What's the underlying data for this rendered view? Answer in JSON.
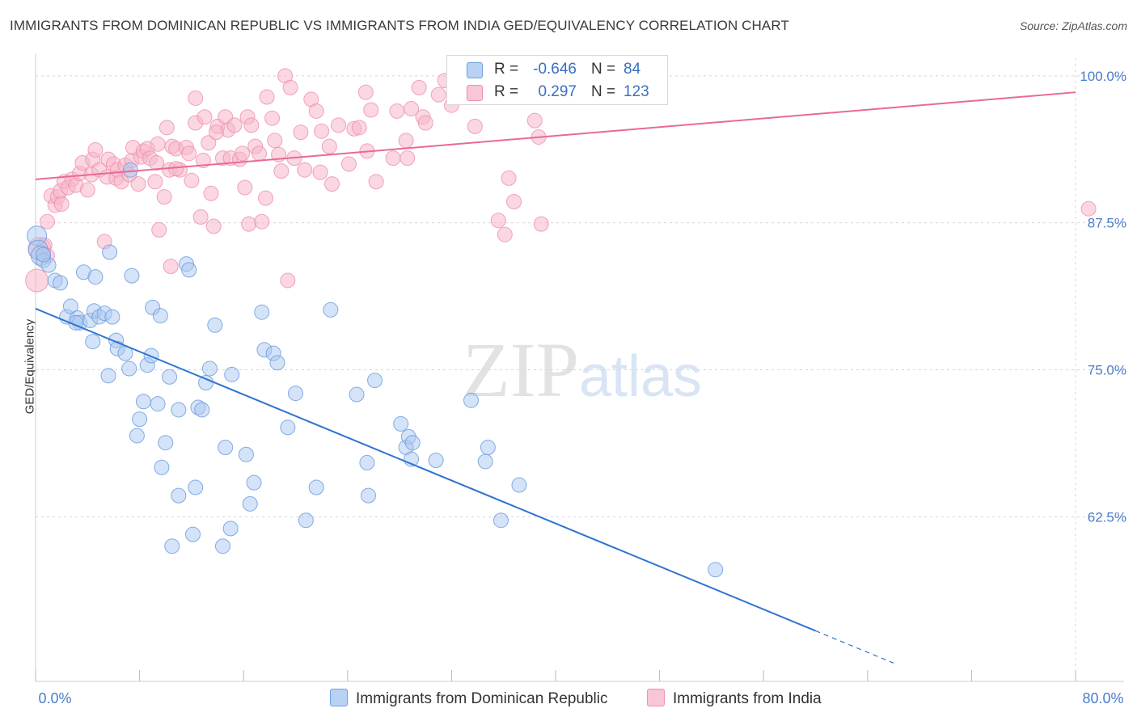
{
  "title": "IMMIGRANTS FROM DOMINICAN REPUBLIC VS IMMIGRANTS FROM INDIA GED/EQUIVALENCY CORRELATION CHART",
  "source": "Source: ZipAtlas.com",
  "watermark": "ZIPatlas",
  "colors": {
    "blue_fill": "#a9c7f0",
    "blue_stroke": "#6f9ee0",
    "blue_line": "#2f74d0",
    "pink_fill": "#f5b6c9",
    "pink_stroke": "#ee8fae",
    "pink_line": "#e86a94",
    "tick_label": "#4a7cc9"
  },
  "legend": {
    "series1": {
      "r_label": "R =",
      "r_value": "-0.646",
      "n_label": "N =",
      "n_value": "84",
      "name": "Immigrants from Dominican Republic"
    },
    "series2": {
      "r_label": "R =",
      "r_value": "0.297",
      "n_label": "N =",
      "n_value": "123",
      "name": "Immigrants from India"
    }
  },
  "chart_data": {
    "type": "scatter",
    "title": "IMMIGRANTS FROM DOMINICAN REPUBLIC VS IMMIGRANTS FROM INDIA GED/EQUIVALENCY CORRELATION CHART",
    "xlabel": "",
    "ylabel": "GED/Equivalency",
    "xlim": [
      0,
      80
    ],
    "ylim": [
      48.5,
      101.5
    ],
    "x_tick_labels": [
      "0.0%",
      "80.0%"
    ],
    "y_ticks": [
      62.5,
      75.0,
      87.5,
      100.0
    ],
    "y_tick_labels": [
      "62.5%",
      "75.0%",
      "87.5%",
      "100.0%"
    ],
    "grid": true,
    "legend_position": "top-center",
    "series": [
      {
        "name": "Immigrants from Dominican Republic",
        "color": "#6f9ee0",
        "trend": {
          "x0": 0.0,
          "y0": 80.2,
          "x1": 60.0,
          "y1": 52.8,
          "dashed_to_x": 66.0
        },
        "points": [
          [
            0.1,
            86.4
          ],
          [
            0.2,
            85.2
          ],
          [
            0.4,
            84.7
          ],
          [
            0.6,
            84.3
          ],
          [
            1.0,
            83.9
          ],
          [
            1.5,
            82.6
          ],
          [
            1.9,
            82.4
          ],
          [
            2.4,
            79.5
          ],
          [
            2.7,
            80.4
          ],
          [
            3.2,
            79.4
          ],
          [
            3.4,
            79.0
          ],
          [
            3.1,
            79.0
          ],
          [
            3.7,
            83.3
          ],
          [
            4.2,
            79.2
          ],
          [
            4.4,
            77.4
          ],
          [
            4.6,
            82.9
          ],
          [
            4.5,
            80.0
          ],
          [
            4.9,
            79.5
          ],
          [
            5.3,
            79.8
          ],
          [
            5.6,
            74.5
          ],
          [
            5.9,
            79.5
          ],
          [
            6.2,
            77.5
          ],
          [
            6.3,
            76.8
          ],
          [
            6.9,
            76.4
          ],
          [
            7.2,
            75.1
          ],
          [
            7.4,
            83.0
          ],
          [
            5.7,
            85.0
          ],
          [
            7.3,
            92.0
          ],
          [
            7.8,
            69.4
          ],
          [
            8.0,
            70.8
          ],
          [
            8.3,
            72.3
          ],
          [
            8.6,
            75.4
          ],
          [
            8.9,
            76.2
          ],
          [
            9.0,
            80.3
          ],
          [
            9.4,
            72.1
          ],
          [
            9.6,
            79.6
          ],
          [
            9.7,
            66.7
          ],
          [
            10.0,
            68.8
          ],
          [
            10.3,
            74.4
          ],
          [
            10.5,
            60.0
          ],
          [
            11.0,
            71.6
          ],
          [
            11.0,
            64.3
          ],
          [
            11.6,
            84.0
          ],
          [
            11.8,
            83.5
          ],
          [
            12.1,
            61.0
          ],
          [
            12.3,
            65.0
          ],
          [
            12.5,
            71.8
          ],
          [
            12.8,
            71.6
          ],
          [
            13.1,
            73.9
          ],
          [
            13.4,
            75.1
          ],
          [
            13.8,
            78.8
          ],
          [
            14.4,
            60.0
          ],
          [
            14.6,
            68.4
          ],
          [
            15.1,
            74.6
          ],
          [
            15.0,
            61.5
          ],
          [
            16.2,
            67.8
          ],
          [
            16.5,
            63.6
          ],
          [
            16.8,
            65.4
          ],
          [
            17.4,
            79.9
          ],
          [
            17.6,
            76.7
          ],
          [
            18.3,
            76.4
          ],
          [
            18.6,
            75.6
          ],
          [
            19.4,
            70.1
          ],
          [
            20.0,
            73.0
          ],
          [
            20.8,
            62.2
          ],
          [
            21.6,
            65.0
          ],
          [
            22.7,
            80.1
          ],
          [
            24.7,
            72.9
          ],
          [
            25.5,
            67.1
          ],
          [
            25.6,
            64.3
          ],
          [
            26.1,
            74.1
          ],
          [
            28.1,
            70.4
          ],
          [
            28.5,
            68.4
          ],
          [
            28.7,
            69.3
          ],
          [
            29.0,
            68.8
          ],
          [
            28.9,
            67.4
          ],
          [
            30.8,
            67.3
          ],
          [
            33.5,
            72.4
          ],
          [
            34.6,
            67.2
          ],
          [
            34.8,
            68.4
          ],
          [
            35.8,
            62.2
          ],
          [
            37.2,
            65.2
          ],
          [
            52.3,
            58.0
          ],
          [
            0.6,
            84.8
          ]
        ]
      },
      {
        "name": "Immigrants from India",
        "color": "#ee8fae",
        "trend": {
          "x0": 0.0,
          "y0": 91.2,
          "x1": 80.0,
          "y1": 98.6
        },
        "points": [
          [
            0.1,
            82.6
          ],
          [
            0.3,
            85.3
          ],
          [
            0.7,
            85.6
          ],
          [
            0.9,
            84.7
          ],
          [
            0.9,
            87.6
          ],
          [
            1.2,
            89.8
          ],
          [
            1.5,
            89.0
          ],
          [
            1.7,
            89.7
          ],
          [
            1.9,
            90.2
          ],
          [
            2.0,
            89.1
          ],
          [
            2.2,
            91.0
          ],
          [
            2.5,
            90.5
          ],
          [
            2.8,
            91.2
          ],
          [
            3.1,
            90.7
          ],
          [
            3.4,
            91.7
          ],
          [
            3.6,
            92.6
          ],
          [
            4.0,
            90.3
          ],
          [
            4.3,
            91.6
          ],
          [
            4.4,
            92.9
          ],
          [
            4.6,
            93.7
          ],
          [
            4.9,
            92.0
          ],
          [
            5.3,
            85.9
          ],
          [
            5.5,
            91.4
          ],
          [
            5.6,
            92.9
          ],
          [
            6.0,
            92.5
          ],
          [
            6.2,
            91.3
          ],
          [
            6.3,
            92.0
          ],
          [
            6.6,
            91.0
          ],
          [
            6.9,
            92.4
          ],
          [
            7.2,
            91.6
          ],
          [
            7.4,
            92.8
          ],
          [
            7.5,
            93.9
          ],
          [
            7.9,
            90.8
          ],
          [
            8.1,
            93.1
          ],
          [
            8.3,
            93.6
          ],
          [
            8.6,
            93.8
          ],
          [
            8.8,
            93.0
          ],
          [
            9.2,
            91.0
          ],
          [
            9.4,
            94.2
          ],
          [
            9.5,
            86.9
          ],
          [
            9.9,
            89.7
          ],
          [
            10.1,
            95.6
          ],
          [
            10.3,
            92.0
          ],
          [
            10.4,
            83.8
          ],
          [
            10.5,
            94.0
          ],
          [
            10.8,
            93.8
          ],
          [
            11.1,
            92.0
          ],
          [
            11.6,
            93.9
          ],
          [
            11.8,
            93.4
          ],
          [
            12.0,
            91.1
          ],
          [
            12.3,
            98.1
          ],
          [
            12.3,
            96.0
          ],
          [
            12.7,
            88.0
          ],
          [
            12.9,
            92.8
          ],
          [
            13.0,
            96.5
          ],
          [
            13.3,
            94.3
          ],
          [
            13.5,
            90.0
          ],
          [
            13.7,
            87.2
          ],
          [
            14.0,
            95.7
          ],
          [
            14.4,
            93.0
          ],
          [
            14.6,
            96.5
          ],
          [
            14.8,
            95.4
          ],
          [
            15.0,
            93.0
          ],
          [
            15.3,
            95.8
          ],
          [
            15.7,
            92.9
          ],
          [
            15.9,
            93.4
          ],
          [
            16.1,
            90.5
          ],
          [
            16.3,
            96.5
          ],
          [
            16.4,
            87.4
          ],
          [
            16.6,
            95.8
          ],
          [
            16.9,
            94.0
          ],
          [
            17.2,
            93.4
          ],
          [
            17.4,
            87.6
          ],
          [
            17.7,
            89.6
          ],
          [
            17.8,
            98.2
          ],
          [
            18.2,
            96.4
          ],
          [
            18.4,
            94.5
          ],
          [
            18.7,
            93.3
          ],
          [
            18.9,
            91.9
          ],
          [
            19.2,
            100.0
          ],
          [
            19.4,
            82.6
          ],
          [
            19.6,
            99.0
          ],
          [
            19.9,
            93.0
          ],
          [
            20.4,
            95.2
          ],
          [
            20.7,
            92.0
          ],
          [
            21.2,
            98.0
          ],
          [
            21.6,
            97.0
          ],
          [
            22.0,
            95.3
          ],
          [
            22.6,
            94.0
          ],
          [
            22.8,
            90.8
          ],
          [
            23.3,
            95.8
          ],
          [
            24.1,
            92.5
          ],
          [
            24.5,
            95.5
          ],
          [
            24.9,
            95.6
          ],
          [
            25.4,
            98.6
          ],
          [
            25.5,
            93.6
          ],
          [
            25.8,
            97.1
          ],
          [
            26.2,
            91.0
          ],
          [
            27.5,
            93.0
          ],
          [
            27.8,
            97.0
          ],
          [
            28.5,
            94.5
          ],
          [
            28.6,
            93.0
          ],
          [
            29.5,
            99.0
          ],
          [
            29.8,
            96.5
          ],
          [
            30.0,
            96.0
          ],
          [
            31.0,
            98.4
          ],
          [
            32.0,
            97.5
          ],
          [
            33.8,
            95.7
          ],
          [
            35.6,
            87.7
          ],
          [
            36.1,
            86.5
          ],
          [
            36.4,
            91.3
          ],
          [
            36.8,
            89.3
          ],
          [
            38.7,
            94.8
          ],
          [
            38.9,
            87.4
          ],
          [
            38.4,
            96.2
          ],
          [
            40.2,
            100.0
          ],
          [
            81.0,
            88.7
          ],
          [
            28.9,
            97.2
          ],
          [
            31.5,
            99.6
          ],
          [
            10.8,
            92.1
          ],
          [
            9.3,
            92.6
          ],
          [
            21.9,
            91.8
          ],
          [
            13.9,
            95.2
          ]
        ]
      }
    ]
  }
}
